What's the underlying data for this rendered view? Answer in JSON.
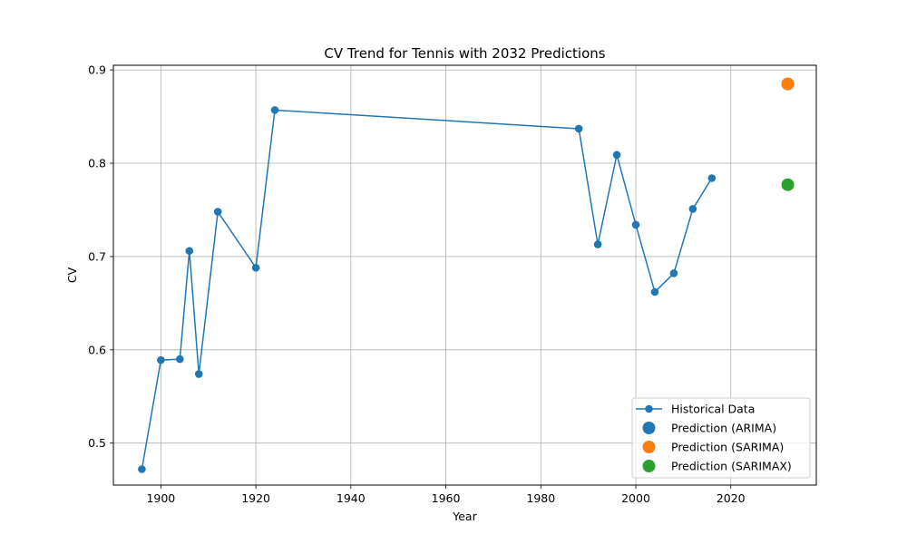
{
  "chart_data": {
    "type": "line",
    "title": "CV Trend for Tennis with 2032 Predictions",
    "xlabel": "Year",
    "ylabel": "CV",
    "xlim": [
      1890,
      2038
    ],
    "ylim": [
      0.455,
      0.905
    ],
    "x_ticks": [
      1900,
      1920,
      1940,
      1960,
      1980,
      2000,
      2020
    ],
    "y_ticks": [
      0.5,
      0.6,
      0.7,
      0.8,
      0.9
    ],
    "grid": true,
    "legend_position": "lower-right",
    "series": [
      {
        "name": "Historical Data",
        "kind": "line-marker",
        "color": "#1f77b4",
        "x": [
          1896,
          1900,
          1904,
          1906,
          1908,
          1912,
          1920,
          1924,
          1988,
          1992,
          1996,
          2000,
          2004,
          2008,
          2012,
          2016
        ],
        "y": [
          0.472,
          0.589,
          0.59,
          0.706,
          0.574,
          0.748,
          0.688,
          0.857,
          0.837,
          0.713,
          0.809,
          0.734,
          0.662,
          0.682,
          0.751,
          0.784
        ]
      },
      {
        "name": "Prediction (ARIMA)",
        "kind": "point",
        "color": "#1f77b4",
        "x": [
          2032
        ],
        "y": [
          0.885
        ]
      },
      {
        "name": "Prediction (SARIMA)",
        "kind": "point",
        "color": "#ff7f0e",
        "x": [
          2032
        ],
        "y": [
          0.885
        ]
      },
      {
        "name": "Prediction (SARIMAX)",
        "kind": "point",
        "color": "#2ca02c",
        "x": [
          2032
        ],
        "y": [
          0.777
        ]
      }
    ]
  }
}
